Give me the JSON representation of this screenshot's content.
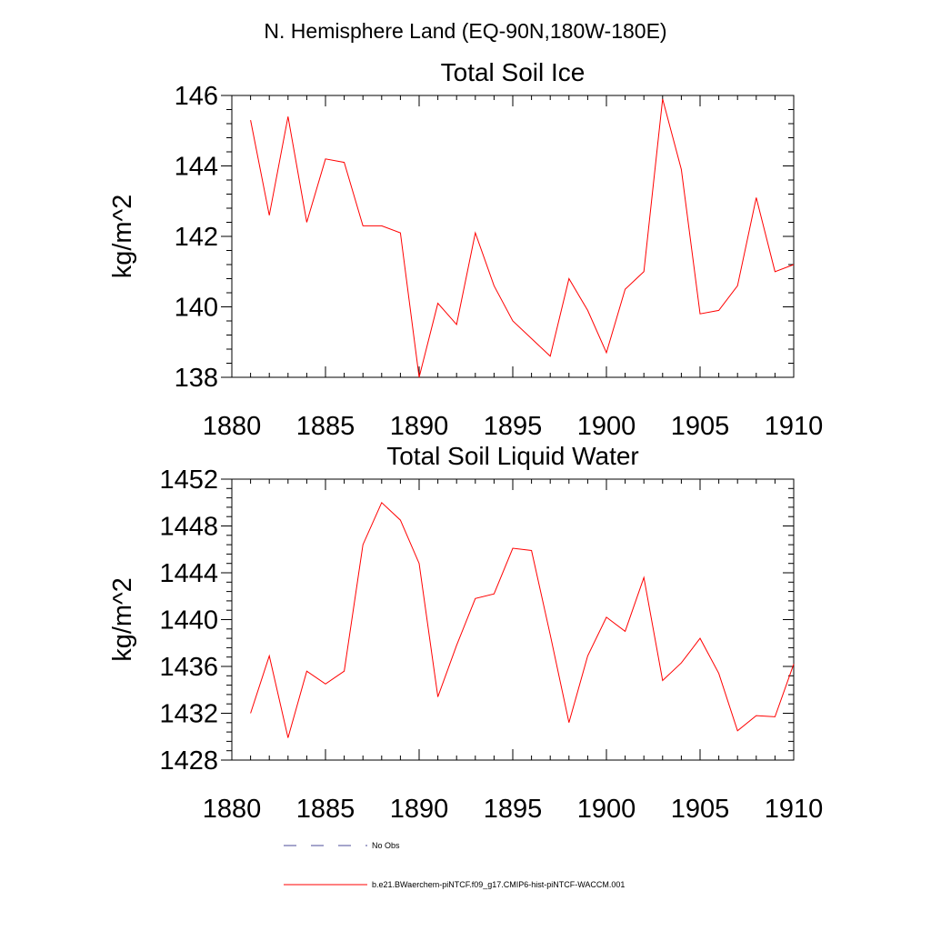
{
  "figure": {
    "suptitle": "N. Hemisphere Land (EQ-90N,180W-180E)"
  },
  "chart_data": [
    {
      "type": "line",
      "title": "Total Soil Ice",
      "xlabel": "",
      "ylabel": "kg/m^2",
      "xlim": [
        1880,
        1910
      ],
      "ylim": [
        138,
        146
      ],
      "xticks": [
        1880,
        1885,
        1890,
        1895,
        1900,
        1905,
        1910
      ],
      "yticks": [
        138,
        140,
        142,
        144,
        146
      ],
      "grid": false,
      "series": [
        {
          "name": "b.e21.BWaerchem-piNTCF.f09_g17.CMIP6-hist-piNTCF-WACCM.001",
          "color": "#ff0000",
          "x": [
            1881,
            1882,
            1883,
            1884,
            1885,
            1886,
            1887,
            1888,
            1889,
            1890,
            1891,
            1892,
            1893,
            1894,
            1895,
            1896,
            1897,
            1898,
            1899,
            1900,
            1901,
            1902,
            1903,
            1904,
            1905,
            1906,
            1907,
            1908,
            1909,
            1910
          ],
          "y": [
            145.3,
            142.6,
            145.4,
            142.4,
            144.2,
            144.1,
            142.3,
            142.3,
            142.1,
            138.0,
            140.1,
            139.5,
            142.1,
            140.6,
            139.6,
            139.1,
            138.6,
            140.8,
            139.9,
            138.7,
            140.5,
            141.0,
            145.9,
            143.9,
            139.8,
            139.9,
            140.6,
            143.1,
            141.0,
            141.2
          ]
        }
      ]
    },
    {
      "type": "line",
      "title": "Total Soil Liquid Water",
      "xlabel": "",
      "ylabel": "kg/m^2",
      "xlim": [
        1880,
        1910
      ],
      "ylim": [
        1428,
        1452
      ],
      "xticks": [
        1880,
        1885,
        1890,
        1895,
        1900,
        1905,
        1910
      ],
      "yticks": [
        1428,
        1432,
        1436,
        1440,
        1444,
        1448,
        1452
      ],
      "grid": false,
      "series": [
        {
          "name": "b.e21.BWaerchem-piNTCF.f09_g17.CMIP6-hist-piNTCF-WACCM.001",
          "color": "#ff0000",
          "x": [
            1881,
            1882,
            1883,
            1884,
            1885,
            1886,
            1887,
            1888,
            1889,
            1890,
            1891,
            1892,
            1893,
            1894,
            1895,
            1896,
            1897,
            1898,
            1899,
            1900,
            1901,
            1902,
            1903,
            1904,
            1905,
            1906,
            1907,
            1908,
            1909,
            1910
          ],
          "y": [
            1432.0,
            1436.9,
            1429.9,
            1435.6,
            1434.5,
            1435.6,
            1446.4,
            1450.0,
            1448.5,
            1444.8,
            1433.4,
            1437.8,
            1441.8,
            1442.2,
            1446.1,
            1445.9,
            1438.7,
            1431.2,
            1436.9,
            1440.2,
            1439.0,
            1443.6,
            1434.8,
            1436.3,
            1438.4,
            1435.4,
            1430.5,
            1431.8,
            1431.7,
            1436.2
          ]
        }
      ]
    }
  ],
  "legend": {
    "placement": "bottom",
    "items": [
      {
        "label": "No Obs",
        "color": "#4b4b99",
        "style": "dashed"
      },
      {
        "label": "b.e21.BWaerchem-piNTCF.f09_g17.CMIP6-hist-piNTCF-WACCM.001",
        "color": "#ff0000",
        "style": "solid"
      }
    ]
  }
}
